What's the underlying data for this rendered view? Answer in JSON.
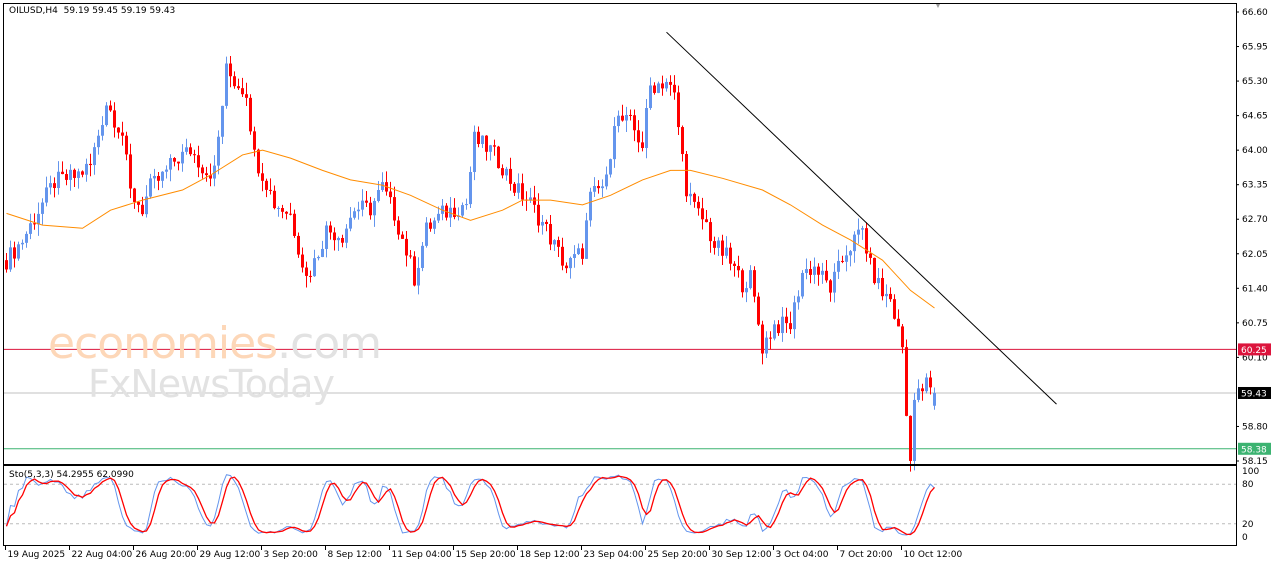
{
  "header": {
    "symbol": "OILUSD,H4",
    "ohlc": "59.19 59.45 59.19 59.43"
  },
  "watermark": {
    "brand": "economies",
    "domain": ".com",
    "sub": "FxNewsToday"
  },
  "colors": {
    "bull": "#6495ED",
    "bear": "#FF0000",
    "ma": "#FF8C00",
    "trend": "#000000",
    "support_red": "#DC143C",
    "support_green": "#3CB371",
    "current": "#C0C0C0",
    "stoch_main": "#6495ED",
    "stoch_signal": "#FF0000"
  },
  "chart_data": {
    "type": "candlestick",
    "title": "OILUSD,H4",
    "ylim": [
      58.15,
      66.6
    ],
    "y_ticks": [
      "66.60",
      "65.95",
      "65.30",
      "64.65",
      "64.00",
      "63.35",
      "62.70",
      "62.05",
      "61.40",
      "60.75",
      "60.10",
      "58.80",
      "58.15"
    ],
    "x_ticks": [
      {
        "bar": 0,
        "label": "19 Aug 2025"
      },
      {
        "bar": 16,
        "label": "22 Aug 04:00"
      },
      {
        "bar": 32,
        "label": "26 Aug 20:00"
      },
      {
        "bar": 48,
        "label": "29 Aug 12:00"
      },
      {
        "bar": 64,
        "label": "3 Sep 20:00"
      },
      {
        "bar": 80,
        "label": "8 Sep 12:00"
      },
      {
        "bar": 96,
        "label": "11 Sep 04:00"
      },
      {
        "bar": 112,
        "label": "15 Sep 20:00"
      },
      {
        "bar": 128,
        "label": "18 Sep 12:00"
      },
      {
        "bar": 144,
        "label": "23 Sep 04:00"
      },
      {
        "bar": 160,
        "label": "25 Sep 20:00"
      },
      {
        "bar": 176,
        "label": "30 Sep 12:00"
      },
      {
        "bar": 192,
        "label": "3 Oct 04:00"
      },
      {
        "bar": 208,
        "label": "7 Oct 20:00"
      },
      {
        "bar": 224,
        "label": "10 Oct 12:00"
      }
    ],
    "close_keypoints": [
      [
        0,
        61.93
      ],
      [
        4,
        62.3
      ],
      [
        9,
        63.0
      ],
      [
        12,
        63.4
      ],
      [
        17,
        63.5
      ],
      [
        21,
        63.7
      ],
      [
        25,
        64.9
      ],
      [
        29,
        64.3
      ],
      [
        31,
        63.2
      ],
      [
        34,
        62.9
      ],
      [
        36,
        63.3
      ],
      [
        39,
        63.5
      ],
      [
        42,
        63.8
      ],
      [
        46,
        64.0
      ],
      [
        50,
        63.6
      ],
      [
        52,
        63.6
      ],
      [
        55,
        65.5
      ],
      [
        57,
        65.3
      ],
      [
        60,
        65.1
      ],
      [
        62,
        63.9
      ],
      [
        65,
        63.4
      ],
      [
        67,
        63.0
      ],
      [
        71,
        62.8
      ],
      [
        75,
        61.6
      ],
      [
        77,
        61.9
      ],
      [
        80,
        62.5
      ],
      [
        84,
        62.4
      ],
      [
        87,
        62.9
      ],
      [
        91,
        62.9
      ],
      [
        94,
        63.3
      ],
      [
        97,
        62.8
      ],
      [
        100,
        62.1
      ],
      [
        102,
        61.6
      ],
      [
        105,
        62.5
      ],
      [
        109,
        62.8
      ],
      [
        112,
        62.9
      ],
      [
        115,
        63.0
      ],
      [
        117,
        64.2
      ],
      [
        121,
        64.0
      ],
      [
        124,
        63.7
      ],
      [
        127,
        63.3
      ],
      [
        131,
        63.0
      ],
      [
        135,
        62.5
      ],
      [
        137,
        62.2
      ],
      [
        140,
        61.8
      ],
      [
        144,
        62.1
      ],
      [
        146,
        63.1
      ],
      [
        150,
        63.4
      ],
      [
        152,
        64.6
      ],
      [
        156,
        64.5
      ],
      [
        159,
        64.1
      ],
      [
        161,
        65.2
      ],
      [
        165,
        65.3
      ],
      [
        167,
        65.0
      ],
      [
        170,
        63.3
      ],
      [
        172,
        62.9
      ],
      [
        175,
        62.6
      ],
      [
        177,
        62.2
      ],
      [
        180,
        62.0
      ],
      [
        184,
        61.5
      ],
      [
        186,
        61.6
      ],
      [
        189,
        60.3
      ],
      [
        192,
        60.7
      ],
      [
        196,
        60.7
      ],
      [
        199,
        61.7
      ],
      [
        202,
        61.8
      ],
      [
        206,
        61.4
      ],
      [
        210,
        62.1
      ],
      [
        214,
        62.5
      ],
      [
        216,
        61.8
      ],
      [
        219,
        61.3
      ],
      [
        221,
        61.2
      ],
      [
        224,
        60.3
      ],
      [
        225,
        59.0
      ],
      [
        226,
        58.3
      ],
      [
        227,
        59.3
      ],
      [
        230,
        59.6
      ],
      [
        232,
        59.43
      ]
    ],
    "moving_average": [
      [
        0,
        62.81
      ],
      [
        9,
        62.59
      ],
      [
        19,
        62.53
      ],
      [
        26,
        62.87
      ],
      [
        34,
        63.06
      ],
      [
        44,
        63.25
      ],
      [
        51,
        63.53
      ],
      [
        59,
        63.91
      ],
      [
        64,
        64.0
      ],
      [
        71,
        63.85
      ],
      [
        79,
        63.62
      ],
      [
        86,
        63.44
      ],
      [
        94,
        63.34
      ],
      [
        101,
        63.15
      ],
      [
        109,
        62.87
      ],
      [
        116,
        62.68
      ],
      [
        124,
        62.87
      ],
      [
        129,
        63.06
      ],
      [
        136,
        63.06
      ],
      [
        144,
        62.97
      ],
      [
        151,
        63.15
      ],
      [
        159,
        63.44
      ],
      [
        166,
        63.62
      ],
      [
        171,
        63.62
      ],
      [
        179,
        63.47
      ],
      [
        189,
        63.25
      ],
      [
        196,
        62.97
      ],
      [
        204,
        62.59
      ],
      [
        211,
        62.31
      ],
      [
        219,
        61.93
      ],
      [
        226,
        61.36
      ],
      [
        232,
        61.03
      ]
    ],
    "trendline": [
      [
        165,
        66.22
      ],
      [
        262.5,
        59.22
      ]
    ],
    "levels": [
      {
        "price": 60.25,
        "label": "60.25",
        "color": "#DC143C",
        "text_color": "#ffffff"
      },
      {
        "price": 59.43,
        "label": "59.43",
        "color": "#C0C0C0",
        "text_color": "#ffffff",
        "label_bg": "#000000"
      },
      {
        "price": 58.38,
        "label": "58.38",
        "color": "#3CB371",
        "text_color": "#ffffff"
      }
    ],
    "stochastic": {
      "label": "Sto(5,3,3) 54.2955 62.0990",
      "params": [
        5,
        3,
        3
      ],
      "main": 54.2955,
      "signal": 62.099,
      "ylim": [
        0,
        100
      ],
      "levels": [
        20,
        80
      ],
      "y_ticks": [
        "100",
        "80",
        "20",
        "0"
      ]
    }
  }
}
